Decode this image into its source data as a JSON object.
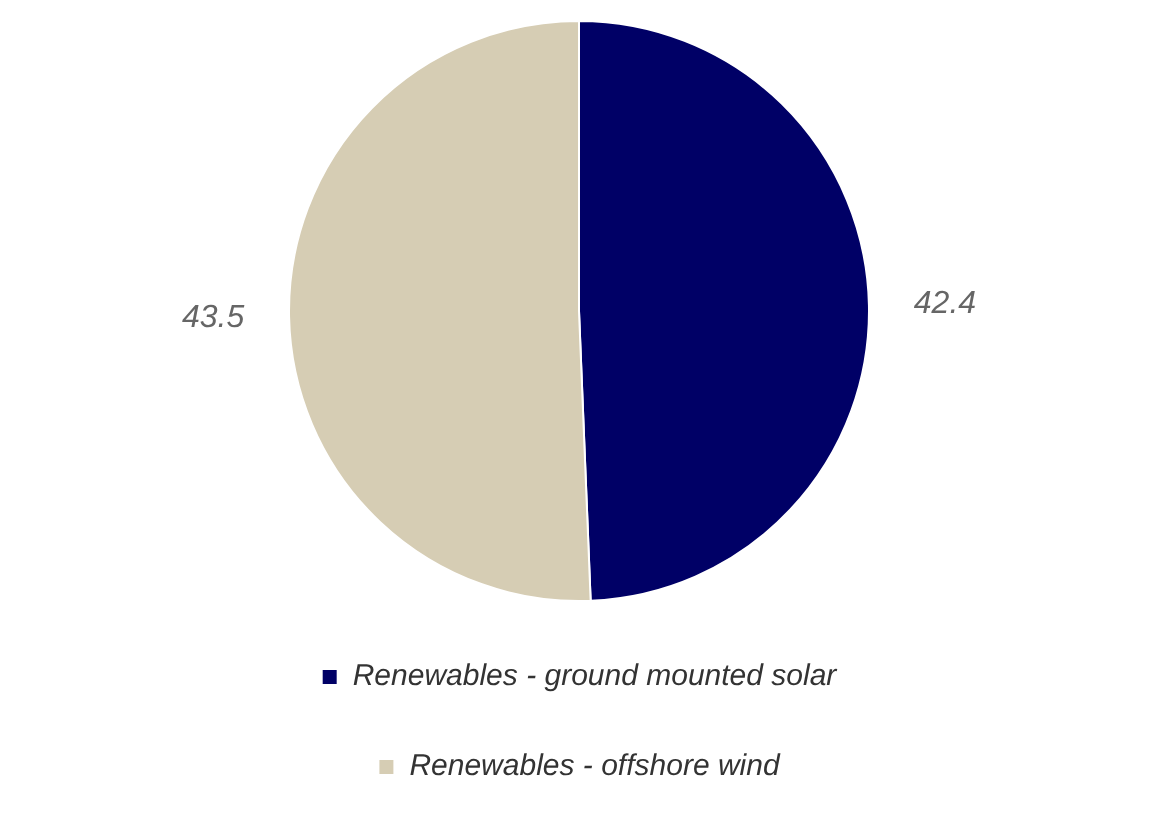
{
  "chart_data": {
    "type": "pie",
    "categories": [
      "Renewables - ground mounted solar",
      "Renewables - offshore wind"
    ],
    "values": [
      42.4,
      43.5
    ],
    "colors": [
      "#000066",
      "#d6cdb4"
    ],
    "data_labels": true,
    "legend": "bottom"
  }
}
